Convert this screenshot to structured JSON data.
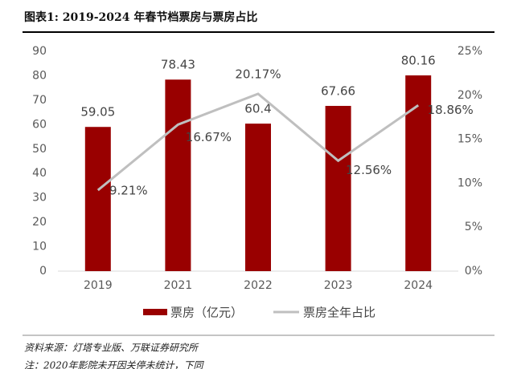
{
  "header": {
    "title": "图表1:  2019-2024 年春节档票房与票房占比"
  },
  "chart_data": {
    "type": "bar_line",
    "categories": [
      "2019",
      "2021",
      "2022",
      "2023",
      "2024"
    ],
    "series": [
      {
        "name": "票房（亿元）",
        "type": "bar",
        "color": "#990000",
        "values": [
          59.05,
          78.43,
          60.4,
          67.66,
          80.16
        ]
      },
      {
        "name": "票房全年占比",
        "type": "line",
        "axis": "y2",
        "color": "#bfbfbf",
        "values": [
          9.21,
          16.67,
          20.17,
          12.56,
          18.86
        ],
        "value_labels": [
          "9.21%",
          "16.67%",
          "20.17%",
          "12.56%",
          "18.86%"
        ]
      }
    ],
    "ylim": [
      0,
      90
    ],
    "yticks": [
      0,
      10,
      20,
      30,
      40,
      50,
      60,
      70,
      80,
      90
    ],
    "y2lim": [
      0,
      25
    ],
    "y2ticks": [
      {
        "value": 0,
        "label": "0%"
      },
      {
        "value": 5,
        "label": "5%"
      },
      {
        "value": 10,
        "label": "10%"
      },
      {
        "value": 15,
        "label": "15%"
      },
      {
        "value": 20,
        "label": "20%"
      },
      {
        "value": 25,
        "label": "25%"
      }
    ],
    "legend": "bottom"
  },
  "footer": {
    "source": "资料来源：灯塔专业版、万联证券研究所",
    "note": "注：2020年影院未开因关停未统计，下同"
  }
}
